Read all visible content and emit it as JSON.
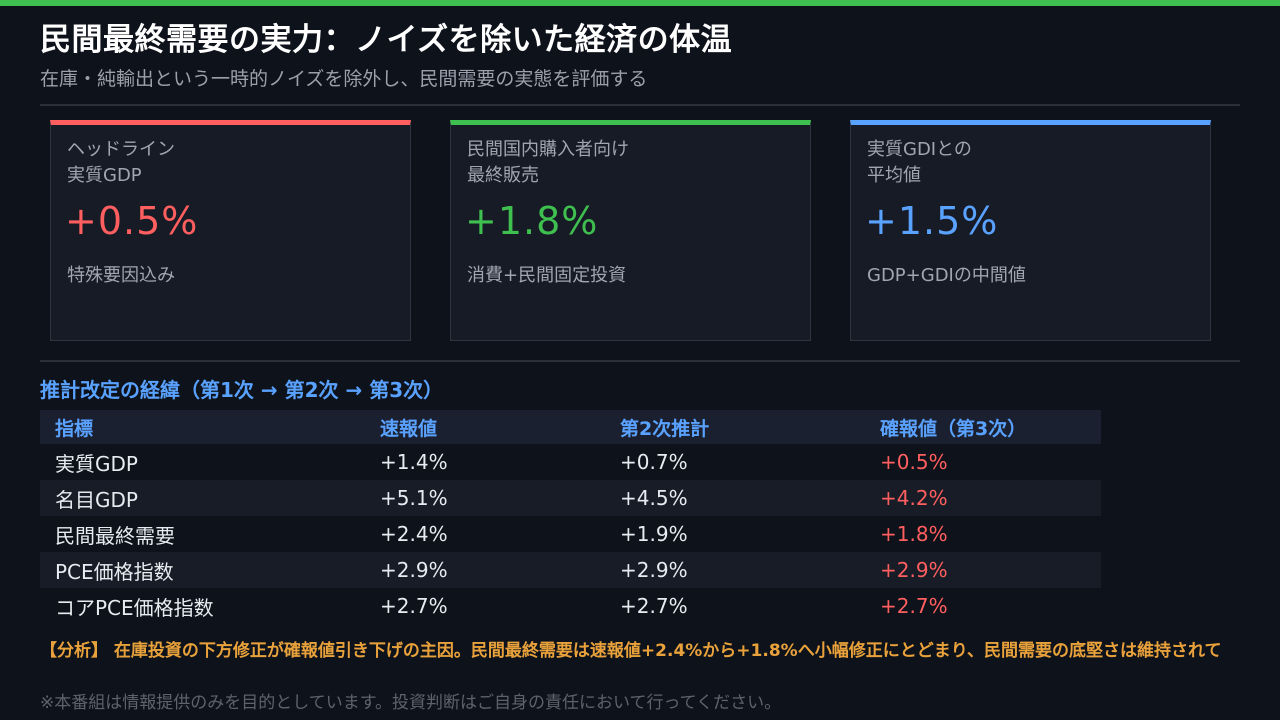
{
  "title": "民間最終需要の実力：ノイズを除いた経済の体温",
  "subtitle": "在庫・純輸出という一時的ノイズを除外し、民間需要の実態を評価する",
  "colors": {
    "top_bar": "#3fbf4f",
    "red": "#ff5f5f",
    "green": "#3fbf4f",
    "blue": "#5aa2ff",
    "orange": "#e9a23b"
  },
  "cards": [
    {
      "label": "ヘッドライン\n実質GDP",
      "value": "+0.5%",
      "note": "特殊要因込み",
      "accent": "#ff5f5f"
    },
    {
      "label": "民間国内購入者向け\n最終販売",
      "value": "+1.8%",
      "note": "消費+民間固定投資",
      "accent": "#3fbf4f"
    },
    {
      "label": "実質GDIとの\n平均値",
      "value": "+1.5%",
      "note": "GDP+GDIの中間値",
      "accent": "#5aa2ff"
    }
  ],
  "revision": {
    "title": "推計改定の経緯（第1次 → 第2次 → 第3次）",
    "headers": [
      "指標",
      "速報値",
      "第2次推計",
      "確報値（第3次）"
    ],
    "rows": [
      [
        "実質GDP",
        "+1.4%",
        "+0.7%",
        "+0.5%"
      ],
      [
        "名目GDP",
        "+5.1%",
        "+4.5%",
        "+4.2%"
      ],
      [
        "民間最終需要",
        "+2.4%",
        "+1.9%",
        "+1.8%"
      ],
      [
        "PCE価格指数",
        "+2.9%",
        "+2.9%",
        "+2.9%"
      ],
      [
        "コアPCE価格指数",
        "+2.7%",
        "+2.7%",
        "+2.7%"
      ]
    ]
  },
  "analysis": "【分析】 在庫投資の下方修正が確報値引き下げの主因。民間最終需要は速報値+2.4%から+1.8%へ小幅修正にとどまり、民間需要の底堅さは維持されて",
  "disclaimer": "※本番組は情報提供のみを目的としています。投資判断はご自身の責任において行ってください。"
}
